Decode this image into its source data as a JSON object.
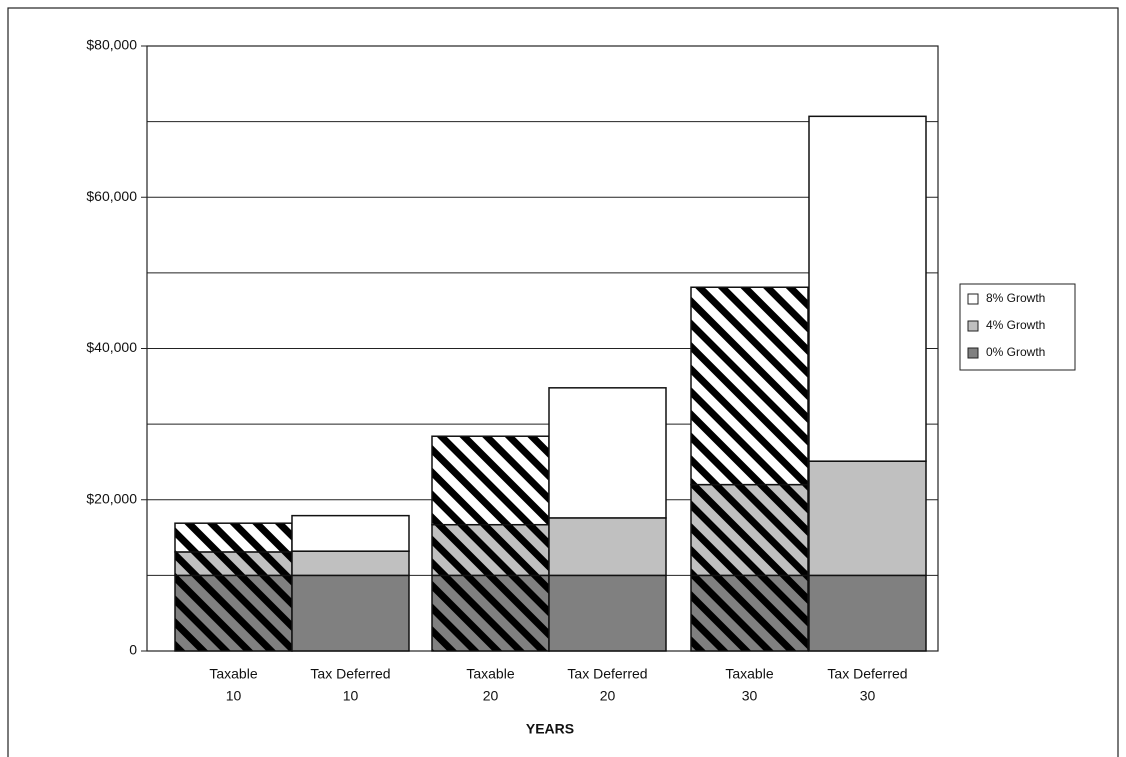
{
  "chart_data": {
    "type": "stacked_bar",
    "x_label": "YEARS",
    "categories": [
      [
        "Taxable",
        "10"
      ],
      [
        "Tax Deferred",
        "10"
      ],
      [
        "Taxable",
        "20"
      ],
      [
        "Tax Deferred",
        "20"
      ],
      [
        "Taxable",
        "30"
      ],
      [
        "Tax Deferred",
        "30"
      ]
    ],
    "hatched": [
      true,
      false,
      true,
      false,
      true,
      false
    ],
    "series": [
      {
        "name": "0% Growth",
        "color": "#808080",
        "values": [
          10000,
          10000,
          10000,
          10000,
          10000,
          10000
        ]
      },
      {
        "name": "4% Growth",
        "color": "#c0c0c0",
        "values": [
          3100,
          3200,
          6700,
          7600,
          12000,
          15100
        ]
      },
      {
        "name": "8% Growth",
        "color": "#ffffff",
        "values": [
          3800,
          4700,
          11700,
          17200,
          26100,
          45600
        ]
      }
    ],
    "ylim": [
      0,
      80000
    ],
    "yticks": [
      0,
      {
        "value": 20000,
        "label": "$20,000"
      },
      {
        "value": 40000,
        "label": "$40,000"
      },
      {
        "value": 60000,
        "label": "$60,000"
      },
      {
        "value": 80000,
        "label": "$80,000"
      }
    ],
    "minor_yticks": [
      10000,
      30000,
      50000,
      70000
    ],
    "grid": true,
    "legend": "right"
  }
}
